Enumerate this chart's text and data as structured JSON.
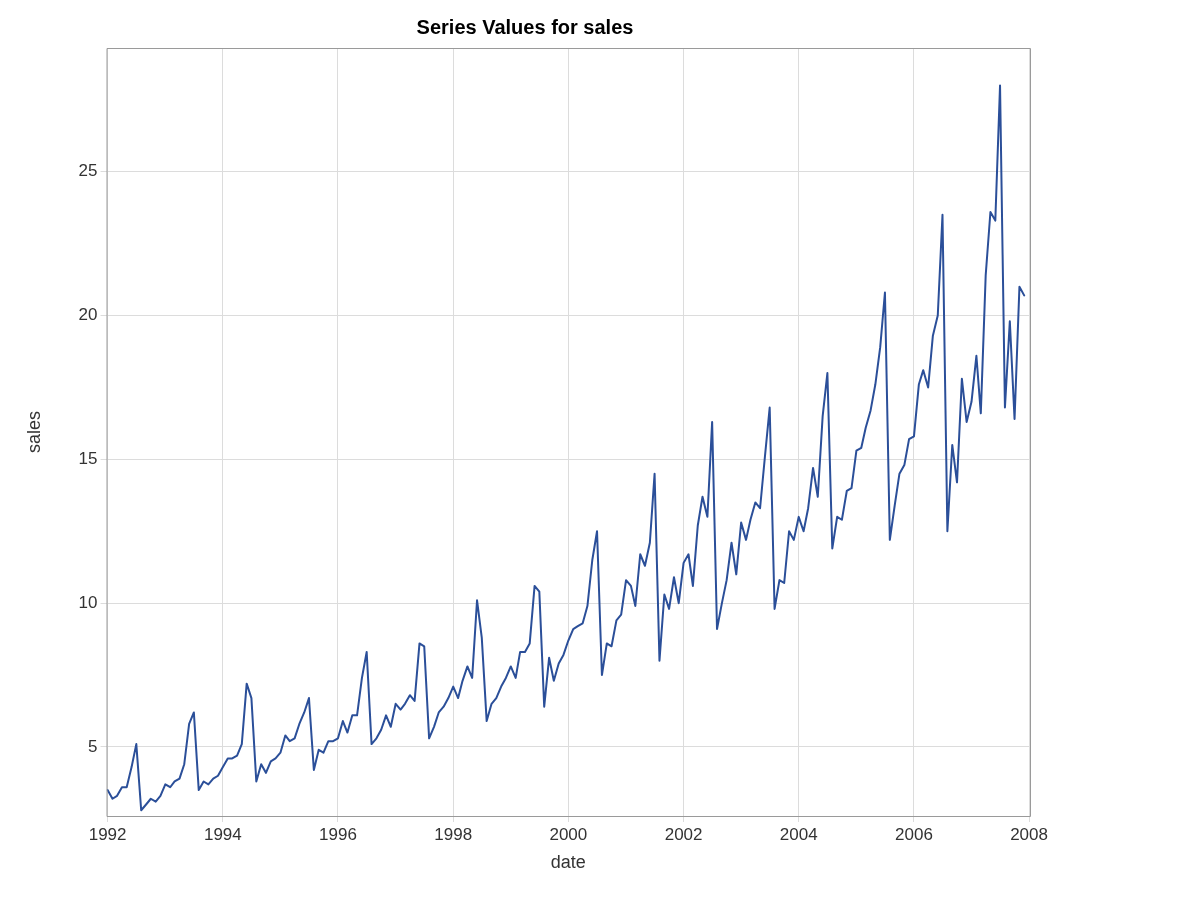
{
  "chart_data": {
    "type": "line",
    "title": "Series Values for sales",
    "xlabel": "date",
    "ylabel": "sales",
    "x": [
      "1992-01",
      "1992-02",
      "1992-03",
      "1992-04",
      "1992-05",
      "1992-06",
      "1992-07",
      "1992-08",
      "1992-09",
      "1992-10",
      "1992-11",
      "1992-12",
      "1993-01",
      "1993-02",
      "1993-03",
      "1993-04",
      "1993-05",
      "1993-06",
      "1993-07",
      "1993-08",
      "1993-09",
      "1993-10",
      "1993-11",
      "1993-12",
      "1994-01",
      "1994-02",
      "1994-03",
      "1994-04",
      "1994-05",
      "1994-06",
      "1994-07",
      "1994-08",
      "1994-09",
      "1994-10",
      "1994-11",
      "1994-12",
      "1995-01",
      "1995-02",
      "1995-03",
      "1995-04",
      "1995-05",
      "1995-06",
      "1995-07",
      "1995-08",
      "1995-09",
      "1995-10",
      "1995-11",
      "1995-12",
      "1996-01",
      "1996-02",
      "1996-03",
      "1996-04",
      "1996-05",
      "1996-06",
      "1996-07",
      "1996-08",
      "1996-09",
      "1996-10",
      "1996-11",
      "1996-12",
      "1997-01",
      "1997-02",
      "1997-03",
      "1997-04",
      "1997-05",
      "1997-06",
      "1997-07",
      "1997-08",
      "1997-09",
      "1997-10",
      "1997-11",
      "1997-12",
      "1998-01",
      "1998-02",
      "1998-03",
      "1998-04",
      "1998-05",
      "1998-06",
      "1998-07",
      "1998-08",
      "1998-09",
      "1998-10",
      "1998-11",
      "1998-12",
      "1999-01",
      "1999-02",
      "1999-03",
      "1999-04",
      "1999-05",
      "1999-06",
      "1999-07",
      "1999-08",
      "1999-09",
      "1999-10",
      "1999-11",
      "1999-12",
      "2000-01",
      "2000-02",
      "2000-03",
      "2000-04",
      "2000-05",
      "2000-06",
      "2000-07",
      "2000-08",
      "2000-09",
      "2000-10",
      "2000-11",
      "2000-12",
      "2001-01",
      "2001-02",
      "2001-03",
      "2001-04",
      "2001-05",
      "2001-06",
      "2001-07",
      "2001-08",
      "2001-09",
      "2001-10",
      "2001-11",
      "2001-12",
      "2002-01",
      "2002-02",
      "2002-03",
      "2002-04",
      "2002-05",
      "2002-06",
      "2002-07",
      "2002-08",
      "2002-09",
      "2002-10",
      "2002-11",
      "2002-12",
      "2003-01",
      "2003-02",
      "2003-03",
      "2003-04",
      "2003-05",
      "2003-06",
      "2003-07",
      "2003-08",
      "2003-09",
      "2003-10",
      "2003-11",
      "2003-12",
      "2004-01",
      "2004-02",
      "2004-03",
      "2004-04",
      "2004-05",
      "2004-06",
      "2004-07",
      "2004-08",
      "2004-09",
      "2004-10",
      "2004-11",
      "2004-12",
      "2005-01",
      "2005-02",
      "2005-03",
      "2005-04",
      "2005-05",
      "2005-06",
      "2005-07",
      "2005-08",
      "2005-09",
      "2005-10",
      "2005-11",
      "2005-12",
      "2006-01",
      "2006-02",
      "2006-03",
      "2006-04",
      "2006-05",
      "2006-06",
      "2006-07",
      "2006-08",
      "2006-09",
      "2006-10",
      "2006-11",
      "2006-12",
      "2007-01",
      "2007-02",
      "2007-03",
      "2007-04",
      "2007-05",
      "2007-06",
      "2007-07",
      "2007-08",
      "2007-09",
      "2007-10",
      "2007-11",
      "2007-12"
    ],
    "series": [
      {
        "color": "#2b4f99",
        "values": [
          3.5,
          3.2,
          3.3,
          3.6,
          3.6,
          4.3,
          5.1,
          2.8,
          3.0,
          3.2,
          3.1,
          3.3,
          3.7,
          3.6,
          3.8,
          3.9,
          4.4,
          5.8,
          6.2,
          3.5,
          3.8,
          3.7,
          3.9,
          4.0,
          4.3,
          4.6,
          4.6,
          4.7,
          5.1,
          7.2,
          6.7,
          3.8,
          4.4,
          4.1,
          4.5,
          4.6,
          4.8,
          5.4,
          5.2,
          5.3,
          5.8,
          6.2,
          6.7,
          4.2,
          4.9,
          4.8,
          5.2,
          5.2,
          5.3,
          5.9,
          5.5,
          6.1,
          6.1,
          7.4,
          8.3,
          5.1,
          5.3,
          5.6,
          6.1,
          5.7,
          6.5,
          6.3,
          6.5,
          6.8,
          6.6,
          8.6,
          8.5,
          5.3,
          5.7,
          6.2,
          6.4,
          6.7,
          7.1,
          6.7,
          7.3,
          7.8,
          7.4,
          10.1,
          8.8,
          5.9,
          6.5,
          6.7,
          7.1,
          7.4,
          7.8,
          7.4,
          8.3,
          8.3,
          8.6,
          10.6,
          10.4,
          6.4,
          8.1,
          7.3,
          7.9,
          8.2,
          8.7,
          9.1,
          9.2,
          9.3,
          9.9,
          11.5,
          12.5,
          7.5,
          8.6,
          8.5,
          9.4,
          9.6,
          10.8,
          10.6,
          9.9,
          11.7,
          11.3,
          12.1,
          14.5,
          8.0,
          10.3,
          9.8,
          10.9,
          10.0,
          11.4,
          11.7,
          10.6,
          12.7,
          13.7,
          13.0,
          16.3,
          9.1,
          10.0,
          10.8,
          12.1,
          11.0,
          12.8,
          12.2,
          12.9,
          13.5,
          13.3,
          15.1,
          16.8,
          9.8,
          10.8,
          10.7,
          12.5,
          12.2,
          13.0,
          12.5,
          13.3,
          14.7,
          13.7,
          16.5,
          18.0,
          11.9,
          13.0,
          12.9,
          13.9,
          14.0,
          15.3,
          15.4,
          16.1,
          16.7,
          17.6,
          18.9,
          20.8,
          12.2,
          13.4,
          14.5,
          14.8,
          15.7,
          15.8,
          17.6,
          18.1,
          17.5,
          19.3,
          20.0,
          23.5,
          12.5,
          15.5,
          14.2,
          17.8,
          16.3,
          17.0,
          18.6,
          16.6,
          21.4,
          23.6,
          23.3,
          28.0,
          16.8,
          19.8,
          16.4,
          21.0,
          20.7
        ]
      }
    ],
    "xlim": [
      "1991-12-25",
      "2008-01-07"
    ],
    "xticks": [
      "1992",
      "1994",
      "1996",
      "1998",
      "2000",
      "2002",
      "2004",
      "2006",
      "2008"
    ],
    "ylim": [
      2.6,
      29.3
    ],
    "yticks": [
      5,
      10,
      15,
      20,
      25
    ],
    "grid": true,
    "marker": "none",
    "line_style": "solid"
  }
}
